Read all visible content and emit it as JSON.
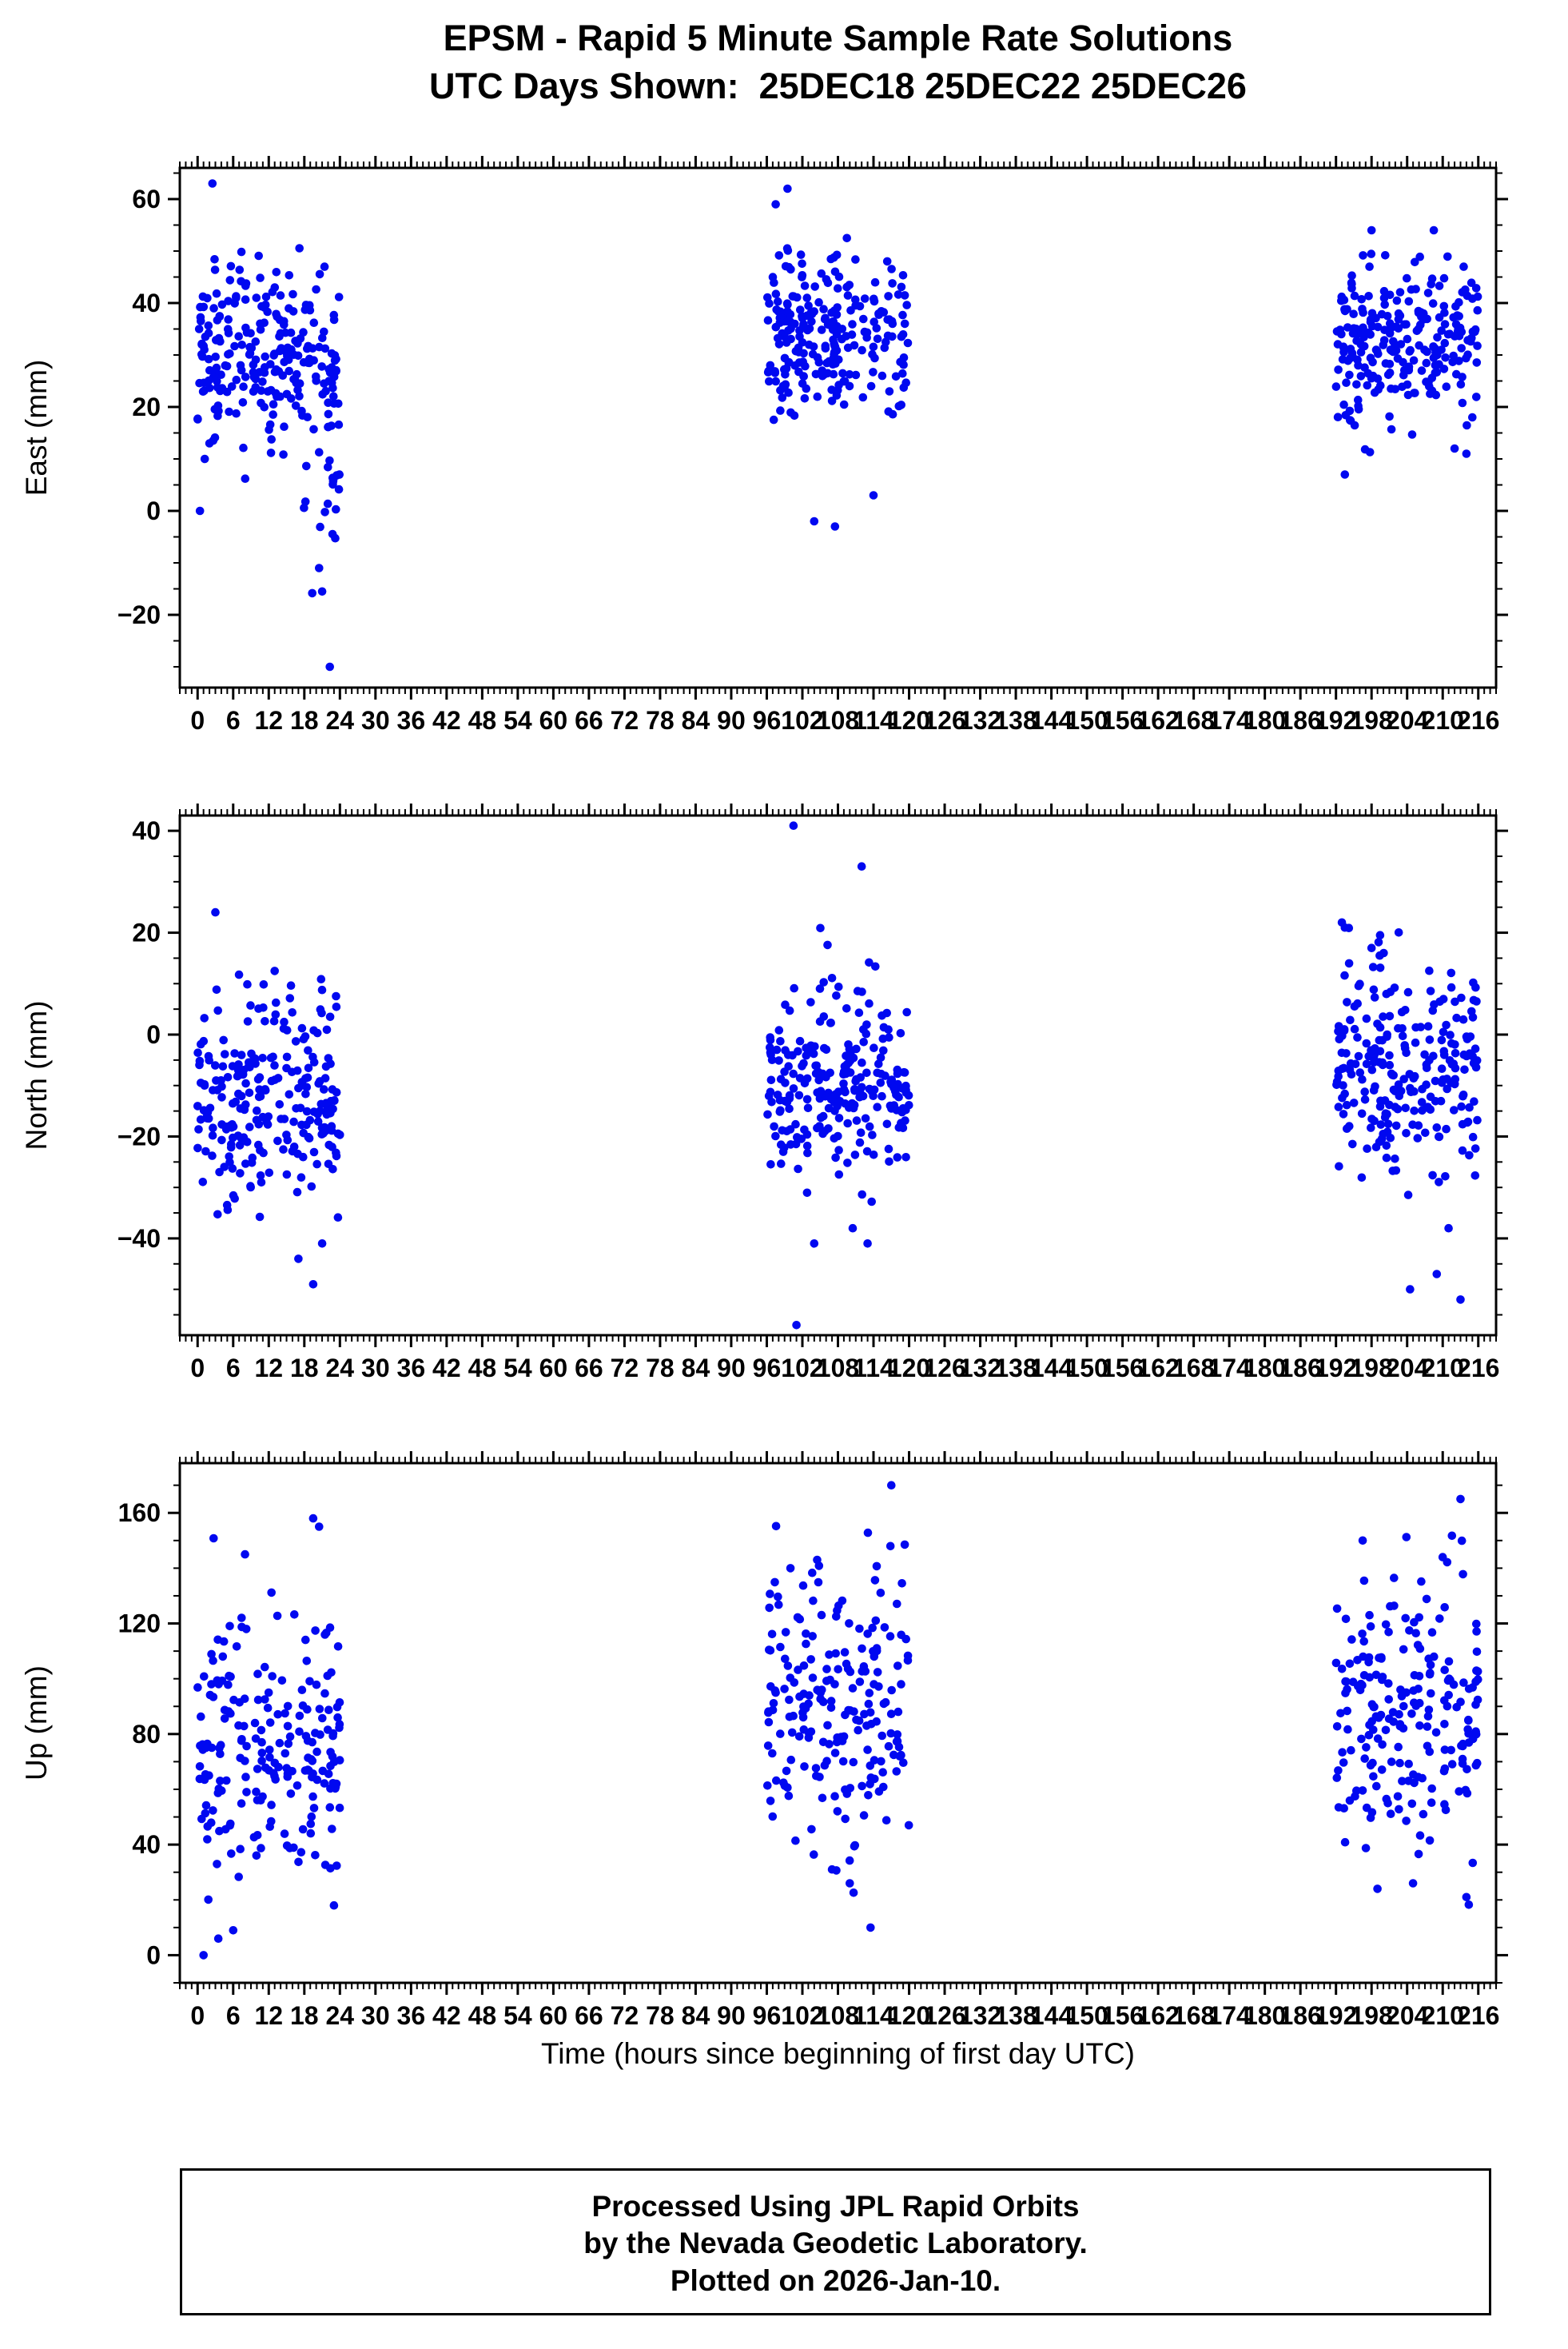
{
  "title": {
    "line1": "EPSM - Rapid 5 Minute Sample Rate Solutions",
    "line2": "UTC Days Shown:  25DEC18 25DEC22 25DEC26"
  },
  "xlabel": "Time (hours since beginning of first day UTC)",
  "footer": {
    "line1": "Processed Using JPL Rapid Orbits",
    "line2": "by the Nevada Geodetic Laboratory.",
    "line3": "Plotted on 2026-Jan-10."
  },
  "point_color": "#0008f0",
  "axis_color": "#000000",
  "chart_data": [
    {
      "type": "scatter",
      "ylabel": "East (mm)",
      "ylim": [
        -34,
        66
      ],
      "yticks": [
        -20,
        0,
        20,
        40,
        60
      ],
      "y_minor": 5,
      "xlim": [
        -3,
        219
      ],
      "xticks": [
        0,
        6,
        12,
        18,
        24,
        30,
        36,
        42,
        48,
        54,
        60,
        66,
        72,
        78,
        84,
        90,
        96,
        102,
        108,
        114,
        120,
        126,
        132,
        138,
        144,
        150,
        156,
        162,
        168,
        174,
        180,
        186,
        192,
        198,
        204,
        210,
        216
      ],
      "x_minor": 1,
      "clusters": [
        {
          "x0": 0,
          "x1": 24,
          "n": 235,
          "mean": 31,
          "sd": 8.5,
          "clip": [
            -2,
            52
          ],
          "seed": 101
        },
        {
          "x0": 17.5,
          "x1": 24,
          "n": 26,
          "mean": 8,
          "sd": 10,
          "clip": [
            -16,
            27
          ],
          "seed": 102
        },
        {
          "x0": 96,
          "x1": 120,
          "n": 240,
          "mean": 33,
          "sd": 8,
          "clip": [
            16,
            56
          ],
          "seed": 103
        },
        {
          "x0": 192,
          "x1": 216,
          "n": 240,
          "mean": 32,
          "sd": 7.5,
          "clip": [
            10,
            50
          ],
          "seed": 104
        }
      ],
      "outliers": [
        [
          2.5,
          63
        ],
        [
          0.4,
          0
        ],
        [
          1.2,
          10
        ],
        [
          2,
          13
        ],
        [
          22.3,
          -30
        ],
        [
          21.0,
          -15.5
        ],
        [
          20.5,
          -11
        ],
        [
          97.5,
          59
        ],
        [
          99.5,
          62
        ],
        [
          104,
          -2
        ],
        [
          107.5,
          -3
        ],
        [
          114,
          3
        ],
        [
          193.5,
          7
        ],
        [
          198,
          54
        ],
        [
          208.5,
          54
        ],
        [
          214,
          11
        ],
        [
          212,
          12
        ]
      ]
    },
    {
      "type": "scatter",
      "ylabel": "North (mm)",
      "ylim": [
        -59,
        43
      ],
      "yticks": [
        -40,
        -20,
        0,
        20,
        40
      ],
      "y_minor": 5,
      "xlim": [
        -3,
        219
      ],
      "xticks": [
        0,
        6,
        12,
        18,
        24,
        30,
        36,
        42,
        48,
        54,
        60,
        66,
        72,
        78,
        84,
        90,
        96,
        102,
        108,
        114,
        120,
        126,
        132,
        138,
        144,
        150,
        156,
        162,
        168,
        174,
        180,
        186,
        192,
        198,
        204,
        210,
        216
      ],
      "x_minor": 1,
      "clusters": [
        {
          "x0": 0,
          "x1": 24,
          "n": 240,
          "mean": -13,
          "sd": 10.5,
          "clip": [
            -37,
            25
          ],
          "seed": 201
        },
        {
          "x0": 96,
          "x1": 120,
          "n": 240,
          "mean": -10,
          "sd": 10,
          "clip": [
            -33,
            21
          ],
          "seed": 202
        },
        {
          "x0": 192,
          "x1": 216,
          "n": 240,
          "mean": -8,
          "sd": 10.5,
          "clip": [
            -33,
            22
          ],
          "seed": 203
        }
      ],
      "outliers": [
        [
          3,
          24
        ],
        [
          13,
          12.5
        ],
        [
          17,
          -44
        ],
        [
          19.5,
          -49
        ],
        [
          21,
          -41
        ],
        [
          100.5,
          41
        ],
        [
          112,
          33
        ],
        [
          104,
          -41
        ],
        [
          110.5,
          -38
        ],
        [
          101,
          -57
        ],
        [
          113,
          -41
        ],
        [
          193,
          22
        ],
        [
          193.5,
          21
        ],
        [
          198,
          17
        ],
        [
          209,
          -47
        ],
        [
          204.5,
          -50
        ],
        [
          213,
          -52
        ],
        [
          211,
          -38
        ]
      ]
    },
    {
      "type": "scatter",
      "ylabel": "Up (mm)",
      "ylim": [
        -10,
        178
      ],
      "yticks": [
        0,
        40,
        80,
        120,
        160
      ],
      "y_minor": 10,
      "xlim": [
        -3,
        219
      ],
      "xticks": [
        0,
        6,
        12,
        18,
        24,
        30,
        36,
        42,
        48,
        54,
        60,
        66,
        72,
        78,
        84,
        90,
        96,
        102,
        108,
        114,
        120,
        126,
        132,
        138,
        144,
        150,
        156,
        162,
        168,
        174,
        180,
        186,
        192,
        198,
        204,
        210,
        216
      ],
      "x_minor": 1,
      "clusters": [
        {
          "x0": 0,
          "x1": 24,
          "n": 205,
          "mean": 78,
          "sd": 26,
          "clip": [
            15,
            160
          ],
          "seed": 301
        },
        {
          "x0": 96,
          "x1": 120,
          "n": 205,
          "mean": 90,
          "sd": 26,
          "clip": [
            20,
            158
          ],
          "seed": 302
        },
        {
          "x0": 192,
          "x1": 216,
          "n": 205,
          "mean": 90,
          "sd": 26,
          "clip": [
            18,
            152
          ],
          "seed": 303
        }
      ],
      "outliers": [
        [
          1,
          0
        ],
        [
          3.5,
          6
        ],
        [
          6,
          9
        ],
        [
          19.5,
          158
        ],
        [
          20.5,
          155
        ],
        [
          23,
          18
        ],
        [
          8,
          145
        ],
        [
          117,
          170
        ],
        [
          113.5,
          10
        ],
        [
          110,
          26
        ],
        [
          100,
          140
        ],
        [
          104.5,
          143
        ],
        [
          107,
          31
        ],
        [
          213,
          165
        ],
        [
          196.5,
          150
        ],
        [
          210,
          144
        ],
        [
          214,
          21
        ],
        [
          205,
          26
        ],
        [
          199,
          24
        ]
      ]
    }
  ]
}
